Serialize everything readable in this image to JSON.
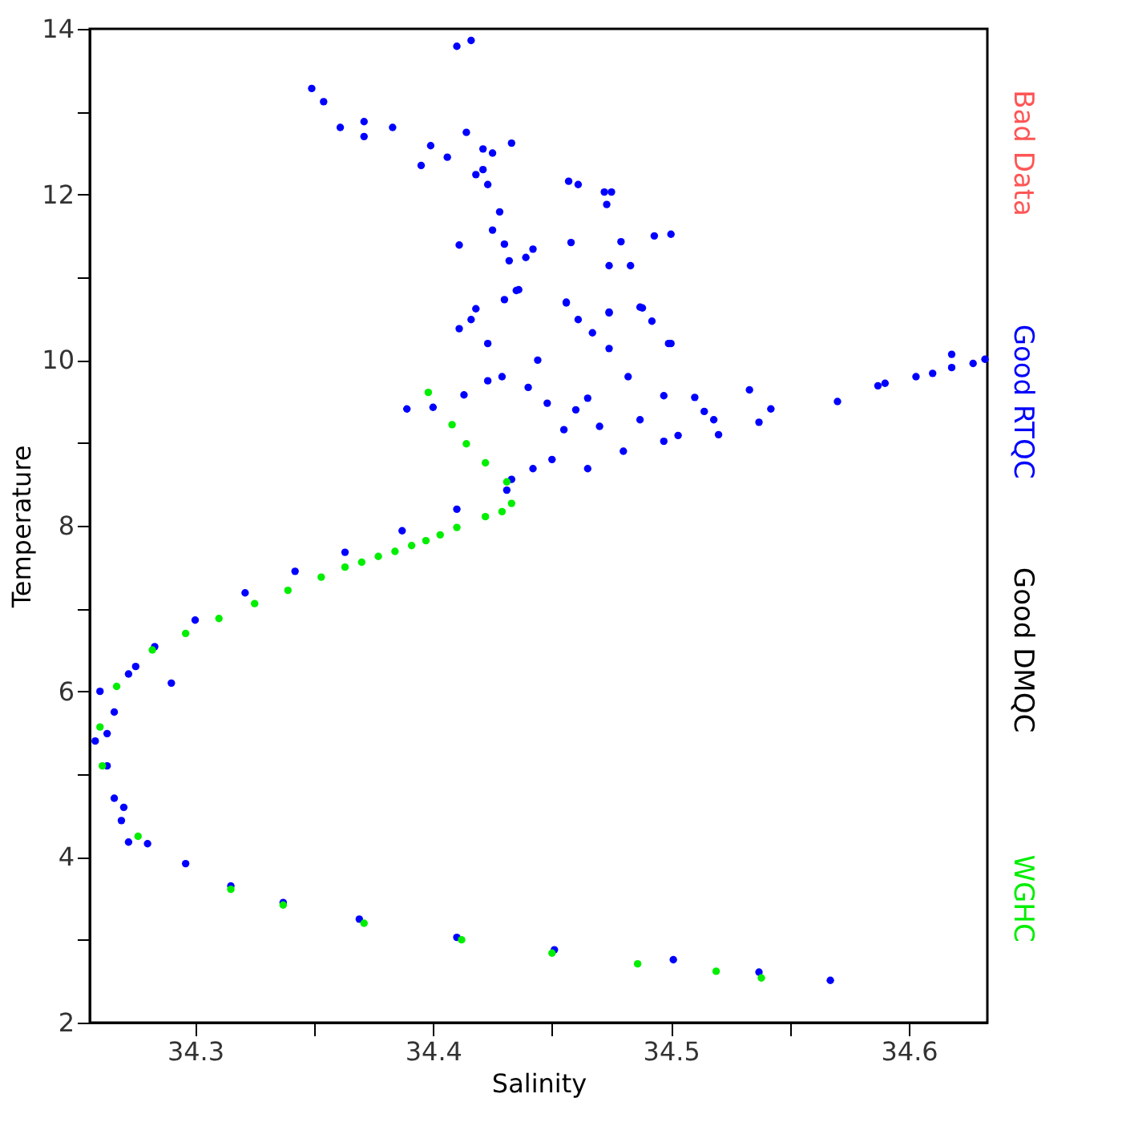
{
  "chart_data": {
    "type": "scatter",
    "xlabel": "Salinity",
    "ylabel": "Temperature",
    "xlim": [
      34.2557,
      34.633
    ],
    "ylim": [
      2,
      14
    ],
    "xticks": [
      34.3,
      {
        "value": 34.35,
        "label": null
      },
      34.4,
      {
        "value": 34.45,
        "label": null
      },
      34.5,
      {
        "value": 34.55,
        "label": null
      },
      34.6
    ],
    "yticks": [
      2,
      {
        "value": 3,
        "label": null
      },
      4,
      {
        "value": 5,
        "label": null
      },
      6,
      {
        "value": 7,
        "label": null
      },
      8,
      {
        "value": 9,
        "label": null
      },
      10,
      {
        "value": 11,
        "label": null
      },
      12,
      {
        "value": 13,
        "label": null
      },
      14
    ],
    "grid": false,
    "legend": "right",
    "marker": "circle",
    "series": [
      {
        "name": "Bad Data",
        "color": "#ff5555"
      },
      {
        "name": "Good RTQC",
        "color": "#0000ff",
        "x": [
          34.567,
          34.537,
          34.501,
          34.451,
          34.41,
          34.369,
          34.337,
          34.315,
          34.296,
          34.28,
          34.269,
          34.272,
          34.266,
          34.263,
          34.263,
          34.266,
          34.272,
          34.283,
          34.3,
          34.321,
          34.342,
          34.363,
          34.387,
          34.41,
          34.431,
          34.442,
          34.433,
          34.465,
          34.497,
          34.518,
          34.542,
          34.57,
          34.587,
          34.59,
          34.603,
          34.61,
          34.618,
          34.618,
          34.627,
          34.632,
          34.436,
          34.456,
          34.487,
          34.474,
          34.461,
          34.492,
          34.499,
          34.467,
          34.444,
          34.474,
          34.429,
          34.497,
          34.51,
          34.514,
          34.533,
          34.537,
          34.455,
          34.465,
          34.482,
          34.448,
          34.44,
          34.487,
          34.503,
          34.423,
          34.41,
          34.416,
          34.349,
          34.354,
          34.361,
          34.371,
          34.371,
          34.383,
          34.414,
          34.399,
          34.395,
          34.406,
          34.421,
          34.425,
          34.421,
          34.418,
          34.423,
          34.433,
          34.457,
          34.461,
          34.472,
          34.475,
          34.473,
          34.428,
          34.425,
          34.411,
          34.43,
          34.432,
          34.439,
          34.442,
          34.458,
          34.479,
          34.474,
          34.483,
          34.493,
          34.5,
          34.43,
          34.435,
          34.418,
          34.416,
          34.411,
          34.456,
          34.488,
          34.474,
          34.5,
          34.389,
          34.4,
          34.423,
          34.413,
          34.258,
          34.26,
          34.275,
          34.29,
          34.27,
          34.48,
          34.45,
          34.47,
          34.46,
          34.52
        ],
        "values": [
          2.51,
          2.61,
          2.76,
          2.88,
          3.03,
          3.25,
          3.45,
          3.65,
          3.92,
          4.16,
          4.44,
          4.18,
          4.71,
          5.1,
          5.49,
          5.75,
          6.21,
          6.54,
          6.86,
          7.19,
          7.45,
          7.68,
          7.94,
          8.2,
          8.43,
          8.69,
          8.56,
          8.69,
          9.02,
          9.28,
          9.41,
          9.5,
          9.69,
          9.72,
          9.8,
          9.84,
          10.07,
          9.91,
          9.96,
          10.01,
          10.85,
          10.69,
          10.64,
          10.58,
          10.49,
          10.47,
          10.2,
          10.33,
          10.0,
          10.14,
          9.8,
          9.57,
          9.55,
          9.38,
          9.64,
          9.25,
          9.16,
          9.54,
          9.8,
          9.48,
          9.67,
          9.28,
          9.09,
          10.2,
          13.79,
          13.86,
          13.28,
          13.12,
          12.81,
          12.88,
          12.7,
          12.81,
          12.75,
          12.59,
          12.35,
          12.45,
          12.55,
          12.5,
          12.3,
          12.24,
          12.12,
          12.62,
          12.16,
          12.12,
          12.03,
          12.03,
          11.88,
          11.79,
          11.57,
          11.39,
          11.4,
          11.2,
          11.24,
          11.34,
          11.42,
          11.43,
          11.14,
          11.14,
          11.5,
          11.52,
          10.73,
          10.84,
          10.62,
          10.49,
          10.38,
          10.7,
          10.63,
          10.57,
          10.2,
          9.41,
          9.43,
          9.75,
          9.58,
          5.4,
          6.0,
          6.3,
          6.1,
          4.6,
          8.9,
          8.8,
          9.2,
          9.4,
          9.1
        ]
      },
      {
        "name": "Good DMQC",
        "color": "#000000"
      },
      {
        "name": "WGHC",
        "color": "#00ee00",
        "x": [
          34.398,
          34.408,
          34.414,
          34.422,
          34.431,
          34.433,
          34.429,
          34.422,
          34.41,
          34.403,
          34.397,
          34.391,
          34.384,
          34.377,
          34.37,
          34.363,
          34.353,
          34.339,
          34.325,
          34.31,
          34.296,
          34.282,
          34.267,
          34.26,
          34.261,
          34.276,
          34.315,
          34.337,
          34.371,
          34.412,
          34.45,
          34.486,
          34.519,
          34.538
        ],
        "values": [
          9.61,
          9.22,
          8.99,
          8.76,
          8.53,
          8.27,
          8.17,
          8.11,
          7.98,
          7.89,
          7.82,
          7.76,
          7.69,
          7.63,
          7.56,
          7.5,
          7.38,
          7.22,
          7.06,
          6.88,
          6.7,
          6.5,
          6.06,
          5.57,
          5.1,
          4.25,
          3.61,
          3.42,
          3.2,
          3.0,
          2.84,
          2.71,
          2.62,
          2.54
        ]
      }
    ]
  }
}
